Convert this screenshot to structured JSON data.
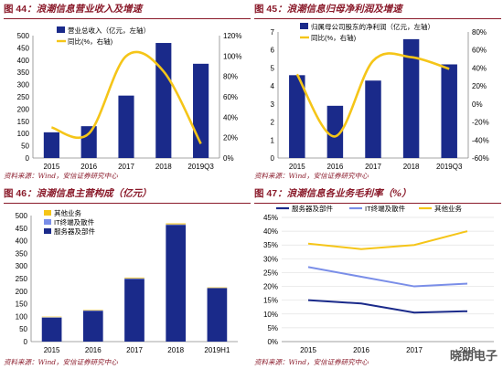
{
  "charts": [
    {
      "figure_no": "图 44",
      "title": "浪潮信息营业收入及增速",
      "source": "资料来源：Wind，安信证券研究中心",
      "chart_data": {
        "type": "bar",
        "categories": [
          "2015",
          "2016",
          "2017",
          "2018",
          "2019Q3"
        ],
        "series": [
          {
            "name": "营业总收入（亿元，左轴）",
            "values": [
              105,
              130,
              255,
              470,
              385
            ],
            "kind": "bar",
            "axis": "left"
          },
          {
            "name": "同比(%，右轴)",
            "values": [
              30,
              24,
              100,
              85,
              14
            ],
            "kind": "line",
            "axis": "right"
          }
        ],
        "yleft": {
          "min": 0,
          "max": 500,
          "ticks": [
            "0",
            "50",
            "100",
            "150",
            "200",
            "250",
            "300",
            "350",
            "400",
            "450",
            "500"
          ]
        },
        "yright": {
          "min": 0,
          "max": 120,
          "ticks": [
            "0%",
            "20%",
            "40%",
            "60%",
            "80%",
            "100%",
            "120%"
          ]
        }
      }
    },
    {
      "figure_no": "图 45",
      "title": "浪潮信息归母净利润及增速",
      "source": "资料来源：Wind，安信证券研究中心",
      "chart_data": {
        "type": "bar",
        "categories": [
          "2015",
          "2016",
          "2017",
          "2018",
          "2019Q3"
        ],
        "series": [
          {
            "name": "归属母公司股东的净利润（亿元，左轴）",
            "values": [
              4.6,
              2.9,
              4.3,
              6.6,
              5.2
            ],
            "kind": "bar",
            "axis": "left"
          },
          {
            "name": "同比(%，右轴)",
            "values": [
              33,
              -36,
              48,
              52,
              39
            ],
            "kind": "line",
            "axis": "right"
          }
        ],
        "yleft": {
          "min": 0,
          "max": 7,
          "ticks": [
            "0",
            "1",
            "2",
            "3",
            "4",
            "5",
            "6",
            "7"
          ]
        },
        "yright": {
          "min": -60,
          "max": 80,
          "ticks": [
            "-60%",
            "-40%",
            "-20%",
            "0%",
            "20%",
            "40%",
            "60%",
            "80%"
          ]
        }
      }
    },
    {
      "figure_no": "图 46",
      "title": "浪潮信息主营构成（亿元）",
      "source": "资料来源：Wind，安信证券研究中心",
      "chart_data": {
        "type": "bar",
        "stacked": true,
        "categories": [
          "2015",
          "2016",
          "2017",
          "2018",
          "2019H1"
        ],
        "series": [
          {
            "name": "服务器及部件",
            "values": [
              95,
              122,
              248,
              462,
              212
            ]
          },
          {
            "name": "IT终端及散件",
            "values": [
              2,
              2,
              3,
              3,
              1
            ]
          },
          {
            "name": "其他业务",
            "values": [
              2,
              2,
              3,
              4,
              2
            ]
          }
        ],
        "ylim": [
          0,
          500
        ],
        "yticks": [
          "0",
          "50",
          "100",
          "150",
          "200",
          "250",
          "300",
          "350",
          "400",
          "450",
          "500"
        ]
      }
    },
    {
      "figure_no": "图 47",
      "title": "浪潮信息各业务毛利率（%）",
      "source": "资料来源：Wind，安信证券研究中心",
      "chart_data": {
        "type": "line",
        "categories": [
          "2015",
          "2016",
          "2017",
          "2018"
        ],
        "series": [
          {
            "name": "服务器及部件",
            "values": [
              15,
              13.8,
              10.5,
              11
            ]
          },
          {
            "name": "IT终端及散件",
            "values": [
              27,
              23.5,
              20,
              21
            ]
          },
          {
            "name": "其他业务",
            "values": [
              35.5,
              33.5,
              35,
              40
            ]
          }
        ],
        "ylim": [
          0,
          45
        ],
        "yticks": [
          "0%",
          "5%",
          "10%",
          "15%",
          "20%",
          "25%",
          "30%",
          "35%",
          "40%",
          "45%"
        ]
      }
    }
  ],
  "colors": {
    "navy": "#1a2a8a",
    "gold": "#f5c518",
    "blue": "#7a8ee8",
    "title": "#8a1a2a"
  },
  "watermark": "晓朗电子"
}
